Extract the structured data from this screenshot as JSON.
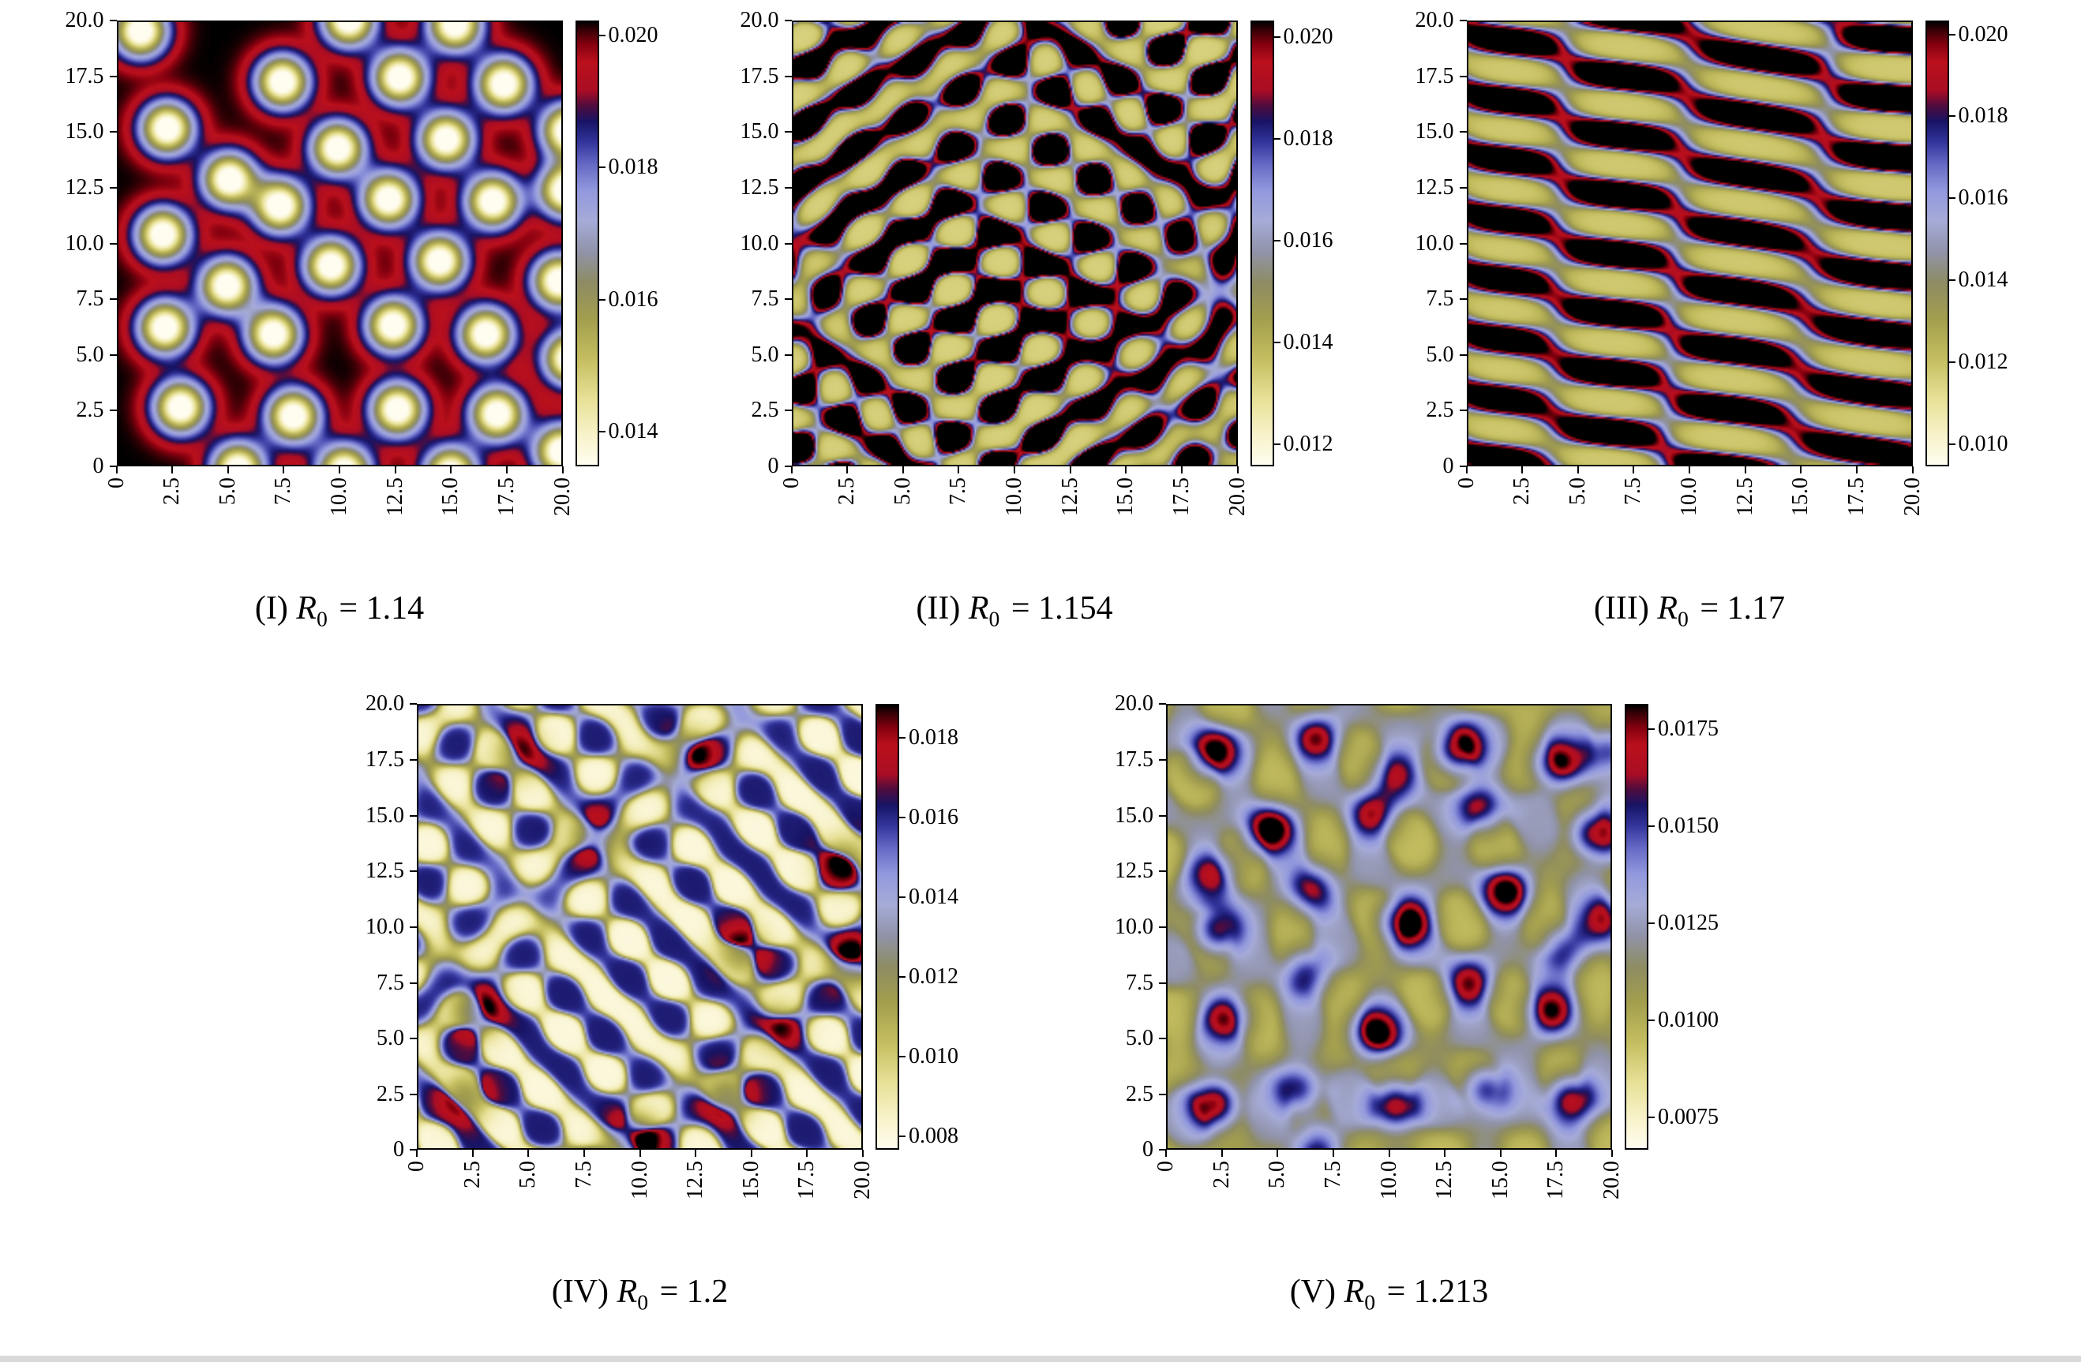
{
  "colormap": {
    "stops": [
      [
        0.0,
        "#fffdf0"
      ],
      [
        0.07,
        "#f7f2c8"
      ],
      [
        0.15,
        "#e7e096"
      ],
      [
        0.24,
        "#c4bd5f"
      ],
      [
        0.33,
        "#a29e4e"
      ],
      [
        0.41,
        "#8e8c62"
      ],
      [
        0.48,
        "#9093a8"
      ],
      [
        0.55,
        "#a6abd8"
      ],
      [
        0.62,
        "#9298dd"
      ],
      [
        0.68,
        "#6468c4"
      ],
      [
        0.73,
        "#32339a"
      ],
      [
        0.775,
        "#171465"
      ],
      [
        0.81,
        "#4e0c3f"
      ],
      [
        0.845,
        "#a90d24"
      ],
      [
        0.91,
        "#bb101c"
      ],
      [
        0.95,
        "#84000f"
      ],
      [
        0.985,
        "#2e0004"
      ],
      [
        1.0,
        "#000000"
      ]
    ]
  },
  "chart_data": [
    {
      "type": "heatmap",
      "panel": "I",
      "caption": {
        "index": "(I)",
        "symbol": "R",
        "subscript": "0",
        "rhs": "= 1.14"
      },
      "xlim": [
        0,
        20
      ],
      "ylim": [
        0,
        20
      ],
      "x_ticks": [
        {
          "value": 0,
          "label": "0"
        },
        {
          "value": 2.5,
          "label": "2.5"
        },
        {
          "value": 5,
          "label": "5.0"
        },
        {
          "value": 7.5,
          "label": "7.5"
        },
        {
          "value": 10,
          "label": "10.0"
        },
        {
          "value": 12.5,
          "label": "12.5"
        },
        {
          "value": 15,
          "label": "15.0"
        },
        {
          "value": 17.5,
          "label": "17.5"
        },
        {
          "value": 20,
          "label": "20.0"
        }
      ],
      "y_ticks": [
        {
          "value": 20,
          "label": "20.0"
        },
        {
          "value": 17.5,
          "label": "17.5"
        },
        {
          "value": 15,
          "label": "15.0"
        },
        {
          "value": 12.5,
          "label": "12.5"
        },
        {
          "value": 10,
          "label": "10.0"
        },
        {
          "value": 7.5,
          "label": "7.5"
        },
        {
          "value": 5,
          "label": "5.0"
        },
        {
          "value": 2.5,
          "label": "2.5"
        },
        {
          "value": 0,
          "label": "0"
        }
      ],
      "colorbar": {
        "vmin": 0.0135,
        "vmax": 0.0202,
        "ticks": [
          {
            "value": 0.02,
            "label": "0.020"
          },
          {
            "value": 0.018,
            "label": "0.018"
          },
          {
            "value": 0.016,
            "label": "0.016"
          },
          {
            "value": 0.014,
            "label": "0.014"
          }
        ]
      },
      "pattern_description": "isolated cold spots (pale cores, blue and red rings) on a dark high-density background",
      "pattern": {
        "base": 1.0,
        "sigma": 0.85,
        "spot_amp": -1.15,
        "spots": [
          [
            1.0,
            19.6
          ],
          [
            5.4,
            -0.2
          ],
          [
            10.2,
            -0.3
          ],
          [
            15.0,
            -0.4
          ],
          [
            2.2,
            15.2
          ],
          [
            2.0,
            10.4
          ],
          [
            2.1,
            6.2
          ],
          [
            2.8,
            2.6
          ],
          [
            5.0,
            12.9
          ],
          [
            4.9,
            8.1
          ],
          [
            7.4,
            17.3
          ],
          [
            7.3,
            11.7
          ],
          [
            7.0,
            5.9
          ],
          [
            7.9,
            2.2
          ],
          [
            10.4,
            20.1
          ],
          [
            9.9,
            14.3
          ],
          [
            9.6,
            9.0
          ],
          [
            12.7,
            17.5
          ],
          [
            12.2,
            12.0
          ],
          [
            12.4,
            6.3
          ],
          [
            12.6,
            2.5
          ],
          [
            15.2,
            19.9
          ],
          [
            14.8,
            14.7
          ],
          [
            14.5,
            9.2
          ],
          [
            17.4,
            17.2
          ],
          [
            16.9,
            11.9
          ],
          [
            16.6,
            5.9
          ],
          [
            17.1,
            2.3
          ],
          [
            20.3,
            15.1
          ],
          [
            19.9,
            8.3
          ],
          [
            20.2,
            12.4
          ],
          [
            20.4,
            4.8
          ],
          [
            20.0,
            0.6
          ]
        ]
      }
    },
    {
      "type": "heatmap",
      "panel": "II",
      "caption": {
        "index": "(II)",
        "symbol": "R",
        "subscript": "0",
        "rhs": "= 1.154"
      },
      "xlim": [
        0,
        20
      ],
      "ylim": [
        0,
        20
      ],
      "x_ticks": [
        {
          "value": 0,
          "label": "0"
        },
        {
          "value": 2.5,
          "label": "2.5"
        },
        {
          "value": 5,
          "label": "5.0"
        },
        {
          "value": 7.5,
          "label": "7.5"
        },
        {
          "value": 10,
          "label": "10.0"
        },
        {
          "value": 12.5,
          "label": "12.5"
        },
        {
          "value": 15,
          "label": "15.0"
        },
        {
          "value": 17.5,
          "label": "17.5"
        },
        {
          "value": 20,
          "label": "20.0"
        }
      ],
      "y_ticks": [
        {
          "value": 20,
          "label": "20.0"
        },
        {
          "value": 17.5,
          "label": "17.5"
        },
        {
          "value": 15,
          "label": "15.0"
        },
        {
          "value": 12.5,
          "label": "12.5"
        },
        {
          "value": 10,
          "label": "10.0"
        },
        {
          "value": 7.5,
          "label": "7.5"
        },
        {
          "value": 5,
          "label": "5.0"
        },
        {
          "value": 2.5,
          "label": "2.5"
        },
        {
          "value": 0,
          "label": "0"
        }
      ],
      "colorbar": {
        "vmin": 0.0116,
        "vmax": 0.0203,
        "ticks": [
          {
            "value": 0.02,
            "label": "0.020"
          },
          {
            "value": 0.018,
            "label": "0.018"
          },
          {
            "value": 0.016,
            "label": "0.016"
          },
          {
            "value": 0.014,
            "label": "0.014"
          },
          {
            "value": 0.012,
            "label": "0.012"
          }
        ]
      },
      "pattern_description": "mixed spot-stripe state: cold spots and short worms/arcs embedded in a red/black high-density background",
      "pattern": {
        "base": 0.68,
        "waves": {
          "n": 6,
          "k": 2.86,
          "seed": 12,
          "sharp": 1.6,
          "amp": 0.45
        }
      }
    },
    {
      "type": "heatmap",
      "panel": "III",
      "caption": {
        "index": "(III)",
        "symbol": "R",
        "subscript": "0",
        "rhs": "= 1.17"
      },
      "xlim": [
        0,
        20
      ],
      "ylim": [
        0,
        20
      ],
      "x_ticks": [
        {
          "value": 0,
          "label": "0"
        },
        {
          "value": 2.5,
          "label": "2.5"
        },
        {
          "value": 5,
          "label": "5.0"
        },
        {
          "value": 7.5,
          "label": "7.5"
        },
        {
          "value": 10,
          "label": "10.0"
        },
        {
          "value": 12.5,
          "label": "12.5"
        },
        {
          "value": 15,
          "label": "15.0"
        },
        {
          "value": 17.5,
          "label": "17.5"
        },
        {
          "value": 20,
          "label": "20.0"
        }
      ],
      "y_ticks": [
        {
          "value": 20,
          "label": "20.0"
        },
        {
          "value": 17.5,
          "label": "17.5"
        },
        {
          "value": 15,
          "label": "15.0"
        },
        {
          "value": 12.5,
          "label": "12.5"
        },
        {
          "value": 10,
          "label": "10.0"
        },
        {
          "value": 7.5,
          "label": "7.5"
        },
        {
          "value": 5,
          "label": "5.0"
        },
        {
          "value": 2.5,
          "label": "2.5"
        },
        {
          "value": 0,
          "label": "0"
        }
      ],
      "colorbar": {
        "vmin": 0.0095,
        "vmax": 0.0203,
        "ticks": [
          {
            "value": 0.02,
            "label": "0.020"
          },
          {
            "value": 0.018,
            "label": "0.018"
          },
          {
            "value": 0.016,
            "label": "0.016"
          },
          {
            "value": 0.014,
            "label": "0.014"
          },
          {
            "value": 0.012,
            "label": "0.012"
          },
          {
            "value": 0.01,
            "label": "0.010"
          }
        ]
      },
      "pattern_description": "labyrinthine stripes, predominantly horizontal; red high-density stripes alternating with pale-yellow valleys edged in blue",
      "pattern": {
        "base": 0.66,
        "waves": {
          "n": 4,
          "k": 2.42,
          "seed": 5,
          "sharp": 2.2,
          "amp": 0.44,
          "angle": 1.5708,
          "spread": 0.55
        }
      }
    },
    {
      "type": "heatmap",
      "panel": "IV",
      "caption": {
        "index": "(IV)",
        "symbol": "R",
        "subscript": "0",
        "rhs": "= 1.2"
      },
      "xlim": [
        0,
        20
      ],
      "ylim": [
        0,
        20
      ],
      "x_ticks": [
        {
          "value": 0,
          "label": "0"
        },
        {
          "value": 2.5,
          "label": "2.5"
        },
        {
          "value": 5,
          "label": "5.0"
        },
        {
          "value": 7.5,
          "label": "7.5"
        },
        {
          "value": 10,
          "label": "10.0"
        },
        {
          "value": 12.5,
          "label": "12.5"
        },
        {
          "value": 15,
          "label": "15.0"
        },
        {
          "value": 17.5,
          "label": "17.5"
        },
        {
          "value": 20,
          "label": "20.0"
        }
      ],
      "y_ticks": [
        {
          "value": 20,
          "label": "20.0"
        },
        {
          "value": 17.5,
          "label": "17.5"
        },
        {
          "value": 15,
          "label": "15.0"
        },
        {
          "value": 12.5,
          "label": "12.5"
        },
        {
          "value": 10,
          "label": "10.0"
        },
        {
          "value": 7.5,
          "label": "7.5"
        },
        {
          "value": 5,
          "label": "5.0"
        },
        {
          "value": 2.5,
          "label": "2.5"
        },
        {
          "value": 0,
          "label": "0"
        }
      ],
      "colorbar": {
        "vmin": 0.0077,
        "vmax": 0.0188,
        "ticks": [
          {
            "value": 0.018,
            "label": "0.018"
          },
          {
            "value": 0.016,
            "label": "0.016"
          },
          {
            "value": 0.014,
            "label": "0.014"
          },
          {
            "value": 0.012,
            "label": "0.012"
          },
          {
            "value": 0.01,
            "label": "0.010"
          },
          {
            "value": 0.008,
            "label": "0.008"
          }
        ]
      },
      "pattern_description": "stripe-spot mixture on a pale yellow low-density background: navy-blue worms and scattered red hot spots",
      "pattern": {
        "base": 0.4,
        "sigma": 0.85,
        "waves": {
          "n": 5,
          "k": 2.51,
          "seed": 9,
          "sharp": 1.5,
          "amp": 0.33
        },
        "spots": [
          [
            2.6,
            6.2,
            0.4
          ],
          [
            9.8,
            0.4,
            0.45
          ],
          [
            13.9,
            2.3,
            0.34
          ],
          [
            2.1,
            2.3,
            0.3
          ],
          [
            7.9,
            14.1,
            0.34
          ],
          [
            12.3,
            17.8,
            0.32
          ],
          [
            19.6,
            8.4,
            0.42
          ],
          [
            19.2,
            12.9,
            0.3
          ],
          [
            4.5,
            17.8,
            0.28
          ],
          [
            16.2,
            5.5,
            0.26
          ],
          [
            14.6,
            8.9,
            0.3
          ]
        ]
      }
    },
    {
      "type": "heatmap",
      "panel": "V",
      "caption": {
        "index": "(V)",
        "symbol": "R",
        "subscript": "0",
        "rhs": "= 1.213"
      },
      "xlim": [
        0,
        20
      ],
      "ylim": [
        0,
        20
      ],
      "x_ticks": [
        {
          "value": 0,
          "label": "0"
        },
        {
          "value": 2.5,
          "label": "2.5"
        },
        {
          "value": 5,
          "label": "5.0"
        },
        {
          "value": 7.5,
          "label": "7.5"
        },
        {
          "value": 10,
          "label": "10.0"
        },
        {
          "value": 12.5,
          "label": "12.5"
        },
        {
          "value": 15,
          "label": "15.0"
        },
        {
          "value": 17.5,
          "label": "17.5"
        },
        {
          "value": 20,
          "label": "20.0"
        }
      ],
      "y_ticks": [
        {
          "value": 20,
          "label": "20.0"
        },
        {
          "value": 17.5,
          "label": "17.5"
        },
        {
          "value": 15,
          "label": "15.0"
        },
        {
          "value": 12.5,
          "label": "12.5"
        },
        {
          "value": 10,
          "label": "10.0"
        },
        {
          "value": 7.5,
          "label": "7.5"
        },
        {
          "value": 5,
          "label": "5.0"
        },
        {
          "value": 2.5,
          "label": "2.5"
        },
        {
          "value": 0,
          "label": "0"
        }
      ],
      "colorbar": {
        "vmin": 0.0067,
        "vmax": 0.0181,
        "ticks": [
          {
            "value": 0.0175,
            "label": "0.0175"
          },
          {
            "value": 0.015,
            "label": "0.0150"
          },
          {
            "value": 0.0125,
            "label": "0.0125"
          },
          {
            "value": 0.01,
            "label": "0.0100"
          },
          {
            "value": 0.0075,
            "label": "0.0075"
          }
        ]
      },
      "pattern_description": "isolated high-density hot spots (red rings, red or black cores, blue halos) on a pale yellow background",
      "pattern": {
        "base": 0.37,
        "sigma": 0.8,
        "waves": {
          "n": 5,
          "k": 1.85,
          "seed": 77,
          "sharp": 1.2,
          "amp": 0.11
        },
        "spots": [
          [
            2.1,
            17.9,
            0.62
          ],
          [
            6.7,
            18.6,
            0.52
          ],
          [
            13.2,
            18.1,
            0.66
          ],
          [
            17.6,
            17.4,
            0.56
          ],
          [
            10.3,
            16.9,
            0.4
          ],
          [
            4.6,
            14.4,
            0.68
          ],
          [
            9.2,
            15.1,
            0.48
          ],
          [
            14.2,
            15.4,
            0.46
          ],
          [
            19.3,
            14.2,
            0.6
          ],
          [
            2.0,
            12.4,
            0.42
          ],
          [
            6.6,
            11.7,
            0.5
          ],
          [
            10.8,
            10.2,
            0.7
          ],
          [
            15.3,
            11.6,
            0.6
          ],
          [
            19.8,
            10.4,
            0.48
          ],
          [
            2.3,
            9.9,
            0.56
          ],
          [
            6.2,
            7.9,
            0.44
          ],
          [
            9.4,
            5.2,
            0.64
          ],
          [
            13.6,
            7.4,
            0.5
          ],
          [
            17.3,
            6.2,
            0.54
          ],
          [
            2.6,
            5.9,
            0.5
          ],
          [
            5.9,
            2.7,
            0.48
          ],
          [
            2.1,
            2.0,
            0.68
          ],
          [
            10.3,
            1.9,
            0.6
          ],
          [
            14.4,
            2.6,
            0.48
          ],
          [
            18.2,
            2.1,
            0.62
          ],
          [
            17.9,
            9.0,
            0.38
          ],
          [
            6.8,
            0.2,
            0.4
          ],
          [
            19.9,
            17.9,
            0.45
          ]
        ]
      }
    }
  ]
}
